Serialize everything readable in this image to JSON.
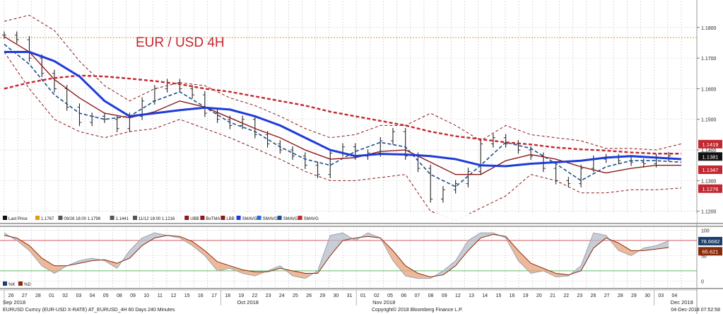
{
  "chart_data": [
    {
      "type": "line",
      "title": "EUR / USD 4H",
      "ylim": [
        1.116,
        1.1885
      ],
      "y_ticks": [
        "1.1800",
        "1.1700",
        "1.1600",
        "1.1500",
        "1.1400",
        "1.1300",
        "1.1200"
      ],
      "y_tick_values": [
        1.18,
        1.17,
        1.16,
        1.15,
        1.14,
        1.13,
        1.12
      ],
      "x_days": [
        "26",
        "27",
        "28",
        "01",
        "02",
        "03",
        "04",
        "05",
        "08",
        "09",
        "10",
        "11",
        "12",
        "15",
        "16",
        "17",
        "18",
        "19",
        "22",
        "23",
        "24",
        "25",
        "26",
        "29",
        "30",
        "31",
        "01",
        "02",
        "05",
        "06",
        "07",
        "08",
        "09",
        "12",
        "13",
        "14",
        "15",
        "16",
        "19",
        "20",
        "21",
        "22",
        "23",
        "26",
        "27",
        "28",
        "29",
        "30",
        "03",
        "04"
      ],
      "months": [
        "Sep 2018",
        "Oct 2018",
        "Nov 2018",
        "Dec 2018"
      ],
      "xlim": [
        0,
        54
      ],
      "reference_line": {
        "label": "1.1767",
        "value": 1.1767,
        "color": "#e09a1b"
      },
      "last_values": [
        {
          "label": "1.1419",
          "value": 1.1419,
          "color": "#c4272f"
        },
        {
          "label": "1.1381",
          "value": 1.1381,
          "color": "#111111"
        },
        {
          "label": "1.1347",
          "value": 1.1347,
          "color": "#c4272f"
        },
        {
          "label": "1.1276",
          "value": 1.1276,
          "color": "#c4272f"
        }
      ],
      "legend": [
        {
          "label": "Last Price",
          "color": "#111111"
        },
        {
          "label": "1.1767",
          "color": "#e09a1b"
        },
        {
          "label": "09/26 18:00 1.1798",
          "color": "#555555"
        },
        {
          "label": "1.1441",
          "color": "#555555"
        },
        {
          "label": "11/12 18:00 1.1216",
          "color": "#555555"
        },
        {
          "label": "UBB",
          "color": "#8b1a1a"
        },
        {
          "label": "BoTMA",
          "color": "#8b1a1a"
        },
        {
          "label": "LBB",
          "color": "#8b1a1a"
        },
        {
          "label": "SMAVG",
          "color": "#1f3bd8"
        },
        {
          "label": "SMAVG",
          "color": "#1f6fd8"
        },
        {
          "label": "SMAVG",
          "color": "#1b4f8a"
        },
        {
          "label": "SMAVG",
          "color": "#c4272f"
        }
      ],
      "series": [
        {
          "key": "price",
          "color": "#222222",
          "style": "ohlc",
          "x": [
            0,
            1,
            2,
            3,
            4,
            5,
            6,
            7,
            8,
            9,
            10,
            11,
            12,
            13,
            14,
            15,
            16,
            17,
            18,
            19,
            20,
            21,
            22,
            23,
            24,
            25,
            26,
            27,
            28,
            29,
            30,
            31,
            32,
            33,
            34,
            35,
            36,
            37,
            38,
            39,
            40,
            41,
            42,
            43,
            44,
            45,
            46,
            47,
            48,
            49,
            50,
            51,
            52,
            53
          ],
          "values": [
            1.1775,
            1.176,
            1.17,
            1.165,
            1.16,
            1.154,
            1.149,
            1.151,
            1.15,
            1.147,
            1.151,
            1.156,
            1.16,
            1.162,
            1.16,
            1.158,
            1.152,
            1.15,
            1.148,
            1.15,
            1.145,
            1.142,
            1.14,
            1.138,
            1.135,
            1.132,
            1.139,
            1.141,
            1.138,
            1.139,
            1.143,
            1.146,
            1.138,
            1.134,
            1.124,
            1.127,
            1.129,
            1.133,
            1.142,
            1.144,
            1.142,
            1.14,
            1.138,
            1.134,
            1.13,
            1.129,
            1.134,
            1.137,
            1.1375,
            1.1365,
            1.136,
            1.1355,
            1.1375,
            1.1381
          ]
        },
        {
          "key": "sma_fast",
          "color": "#1b4f8a",
          "width": 1.6,
          "dash": "5,3",
          "x": [
            0,
            2,
            4,
            6,
            8,
            10,
            12,
            14,
            16,
            18,
            20,
            22,
            24,
            26,
            28,
            30,
            32,
            34,
            36,
            38,
            40,
            42,
            44,
            46,
            48,
            50,
            52,
            54
          ],
          "values": [
            1.1745,
            1.168,
            1.158,
            1.152,
            1.15,
            1.151,
            1.156,
            1.159,
            1.154,
            1.149,
            1.146,
            1.141,
            1.137,
            1.135,
            1.1395,
            1.1425,
            1.141,
            1.132,
            1.128,
            1.135,
            1.1425,
            1.1405,
            1.1355,
            1.13,
            1.1345,
            1.1365,
            1.1365,
            1.136
          ]
        },
        {
          "key": "botma",
          "color": "#8b1a1a",
          "width": 1.4,
          "dash": "",
          "x": [
            0,
            2,
            4,
            6,
            8,
            10,
            12,
            14,
            16,
            18,
            20,
            22,
            24,
            26,
            28,
            30,
            32,
            34,
            36,
            38,
            40,
            42,
            44,
            46,
            48,
            50,
            52,
            54
          ],
          "values": [
            1.177,
            1.172,
            1.163,
            1.157,
            1.152,
            1.1505,
            1.1525,
            1.156,
            1.154,
            1.1505,
            1.147,
            1.144,
            1.14,
            1.137,
            1.1375,
            1.1395,
            1.14,
            1.136,
            1.132,
            1.132,
            1.1365,
            1.1385,
            1.137,
            1.1345,
            1.1325,
            1.134,
            1.135,
            1.135
          ]
        },
        {
          "key": "ubb",
          "color": "#8b1a1a",
          "width": 1.0,
          "dash": "4,3",
          "x": [
            0,
            2,
            4,
            6,
            8,
            10,
            12,
            14,
            16,
            18,
            20,
            22,
            24,
            26,
            28,
            30,
            32,
            34,
            36,
            38,
            40,
            42,
            44,
            46,
            48,
            50,
            52,
            54
          ],
          "values": [
            1.182,
            1.184,
            1.179,
            1.169,
            1.161,
            1.156,
            1.16,
            1.162,
            1.161,
            1.157,
            1.1545,
            1.151,
            1.147,
            1.144,
            1.145,
            1.148,
            1.148,
            1.152,
            1.148,
            1.143,
            1.148,
            1.145,
            1.144,
            1.143,
            1.1405,
            1.1405,
            1.14,
            1.142
          ]
        },
        {
          "key": "lbb",
          "color": "#8b1a1a",
          "width": 1.0,
          "dash": "4,3",
          "x": [
            0,
            2,
            4,
            6,
            8,
            10,
            12,
            14,
            16,
            18,
            20,
            22,
            24,
            26,
            28,
            30,
            32,
            34,
            36,
            38,
            40,
            42,
            44,
            46,
            48,
            50,
            52,
            54
          ],
          "values": [
            1.172,
            1.16,
            1.15,
            1.146,
            1.144,
            1.146,
            1.147,
            1.15,
            1.147,
            1.144,
            1.1405,
            1.137,
            1.133,
            1.13,
            1.13,
            1.131,
            1.132,
            1.12,
            1.117,
            1.121,
            1.125,
            1.132,
            1.13,
            1.126,
            1.126,
            1.127,
            1.127,
            1.1276
          ]
        },
        {
          "key": "sma_long",
          "color": "#c4272f",
          "width": 2.4,
          "dash": "5,3",
          "x": [
            0,
            2,
            4,
            6,
            8,
            10,
            12,
            14,
            16,
            18,
            20,
            22,
            24,
            26,
            28,
            30,
            32,
            34,
            36,
            38,
            40,
            42,
            44,
            46,
            48,
            50,
            52,
            54
          ],
          "values": [
            1.16,
            1.162,
            1.1635,
            1.1643,
            1.164,
            1.1633,
            1.1625,
            1.1615,
            1.16,
            1.159,
            1.1575,
            1.156,
            1.1545,
            1.1525,
            1.151,
            1.1495,
            1.148,
            1.146,
            1.1445,
            1.1435,
            1.1425,
            1.1418,
            1.1408,
            1.1402,
            1.1398,
            1.1392,
            1.1388,
            1.1388
          ]
        },
        {
          "key": "sma_mid",
          "color": "#1f3bd8",
          "width": 3.0,
          "dash": "",
          "x": [
            0,
            2,
            4,
            6,
            8,
            10,
            12,
            14,
            16,
            18,
            20,
            22,
            24,
            26,
            28,
            30,
            32,
            34,
            36,
            38,
            40,
            42,
            44,
            46,
            48,
            50,
            52,
            54
          ],
          "values": [
            1.172,
            1.172,
            1.169,
            1.164,
            1.156,
            1.151,
            1.152,
            1.153,
            1.1538,
            1.1532,
            1.151,
            1.148,
            1.144,
            1.14,
            1.138,
            1.1387,
            1.1385,
            1.138,
            1.137,
            1.135,
            1.1347,
            1.1355,
            1.136,
            1.1365,
            1.1375,
            1.138,
            1.1375,
            1.137
          ]
        }
      ]
    },
    {
      "type": "line",
      "ylim": [
        -15,
        108
      ],
      "y_ticks": [
        "100",
        "50",
        "0"
      ],
      "y_tick_values": [
        100,
        50,
        0
      ],
      "overbought": 80,
      "oversold": 20,
      "last_values": [
        {
          "label": "78.6682",
          "value": 78.6682,
          "color": "#1b3f6b"
        },
        {
          "label": "65.621",
          "value": 65.621,
          "color": "#8a2a0a"
        }
      ],
      "legend": [
        {
          "label": "%K",
          "color": "#1b3f6b"
        },
        {
          "label": "%D",
          "color": "#8a2a0a"
        }
      ],
      "series": [
        {
          "key": "k",
          "color": "#9aa3b0",
          "x": [
            0,
            1,
            2,
            3,
            4,
            5,
            6,
            7,
            8,
            9,
            10,
            11,
            12,
            13,
            14,
            15,
            16,
            17,
            18,
            19,
            20,
            21,
            22,
            23,
            24,
            25,
            26,
            27,
            28,
            29,
            30,
            31,
            32,
            33,
            34,
            35,
            36,
            37,
            38,
            39,
            40,
            41,
            42,
            43,
            44,
            45,
            46,
            47,
            48,
            49,
            50,
            51,
            52,
            53
          ],
          "values": [
            95,
            80,
            60,
            30,
            15,
            30,
            40,
            45,
            40,
            25,
            60,
            85,
            95,
            90,
            85,
            70,
            50,
            20,
            25,
            15,
            10,
            20,
            30,
            10,
            5,
            20,
            90,
            95,
            80,
            95,
            85,
            40,
            10,
            5,
            5,
            20,
            40,
            80,
            95,
            95,
            85,
            40,
            15,
            20,
            8,
            10,
            30,
            95,
            90,
            60,
            50,
            65,
            70,
            79
          ]
        },
        {
          "key": "d",
          "color": "#8a2a0a",
          "x": [
            0,
            1,
            2,
            3,
            4,
            5,
            6,
            7,
            8,
            9,
            10,
            11,
            12,
            13,
            14,
            15,
            16,
            17,
            18,
            19,
            20,
            21,
            22,
            23,
            24,
            25,
            26,
            27,
            28,
            29,
            30,
            31,
            32,
            33,
            34,
            35,
            36,
            37,
            38,
            39,
            40,
            41,
            42,
            43,
            44,
            45,
            46,
            47,
            48,
            49,
            50,
            51,
            52,
            53
          ],
          "values": [
            90,
            85,
            70,
            45,
            30,
            30,
            35,
            40,
            42,
            35,
            45,
            70,
            85,
            90,
            88,
            78,
            60,
            38,
            30,
            22,
            18,
            18,
            25,
            20,
            15,
            15,
            50,
            80,
            85,
            88,
            85,
            60,
            30,
            15,
            8,
            12,
            30,
            60,
            85,
            92,
            88,
            60,
            35,
            25,
            15,
            12,
            20,
            65,
            85,
            75,
            60,
            60,
            63,
            66
          ]
        }
      ]
    }
  ],
  "footer": {
    "left": "EURUSD Curncy (EUR-USD X-RATE) AT_EURUSD_4H 60 Days 240 Minutes",
    "center": "Copyright© 2018 Bloomberg Finance L.P.",
    "right": "04-Dec-2018 07:52:58"
  }
}
